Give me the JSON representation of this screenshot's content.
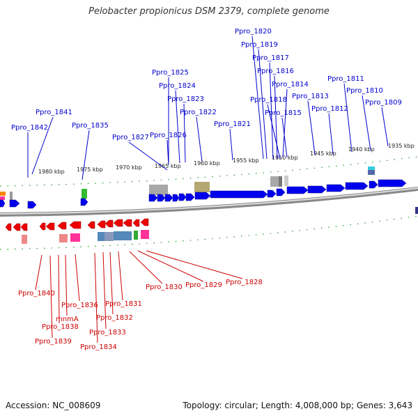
{
  "title": "Pelobacter propionicus DSM 2379, complete genome",
  "footer": {
    "accession": "Accession: NC_008609",
    "topology": "Topology: circular; Length: 4,008,000 bp; Genes: 3,643"
  },
  "colors": {
    "forward_gene": "#0000ee",
    "reverse_gene": "#ee0000",
    "backbone": "#888888",
    "tick": "#229922",
    "forward_label": "#0000cc",
    "reverse_label": "#cc0000",
    "feature_gray": "#a8a8a8",
    "feature_olive": "#b4a870",
    "feature_green": "#33bb33",
    "feature_pink": "#ff3399",
    "feature_salmon": "#ee8888",
    "feature_steelblue": "#5588bb",
    "feature_cyan": "#33ccdd",
    "feature_orange": "#ff8800"
  },
  "kbp_ticks": [
    "1980 kbp",
    "1975 kbp",
    "1970 kbp",
    "1965 kbp",
    "1960 kbp",
    "1955 kbp",
    "1950 kbp",
    "1945 kbp",
    "1940 kbp",
    "1935 kbp"
  ],
  "forward_labels": [
    "Ppro_1820",
    "Ppro_1819",
    "Ppro_1817",
    "Ppro_1816",
    "Ppro_1814",
    "Ppro_1818",
    "Ppro_1815",
    "Ppro_1813",
    "Ppro_1812",
    "Ppro_1811",
    "Ppro_1810",
    "Ppro_1809",
    "Ppro_1825",
    "Ppro_1824",
    "Ppro_1823",
    "Ppro_1822",
    "Ppro_1821",
    "Ppro_1841",
    "Ppro_1842",
    "Ppro_1835",
    "Ppro_1827",
    "Ppro_1826"
  ],
  "reverse_labels": [
    "Ppro_1840",
    "Ppro_1838",
    "Ppro_1839",
    "mnmA",
    "Ppro_1836",
    "Ppro_1834",
    "Ppro_1833",
    "Ppro_1832",
    "Ppro_1831",
    "Ppro_1830",
    "Ppro_1829",
    "Ppro_1828"
  ]
}
